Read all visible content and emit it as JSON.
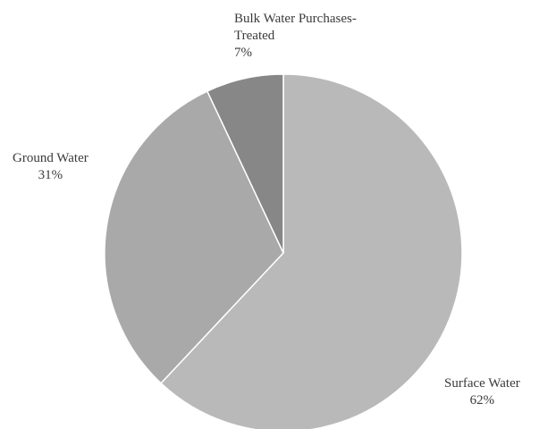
{
  "chart_data": {
    "type": "pie",
    "slices": [
      {
        "label": "Surface Water",
        "value": 62,
        "percent_label": "62%",
        "color": "#b9b9b9"
      },
      {
        "label": "Ground Water",
        "value": 31,
        "percent_label": "31%",
        "color": "#a9a9a9"
      },
      {
        "label": "Bulk Water Purchases-Treated",
        "label_lines": [
          "Bulk Water Purchases-",
          "Treated"
        ],
        "value": 7,
        "percent_label": "7%",
        "color": "#878787"
      }
    ],
    "start": "12 o'clock",
    "direction": "clockwise"
  }
}
